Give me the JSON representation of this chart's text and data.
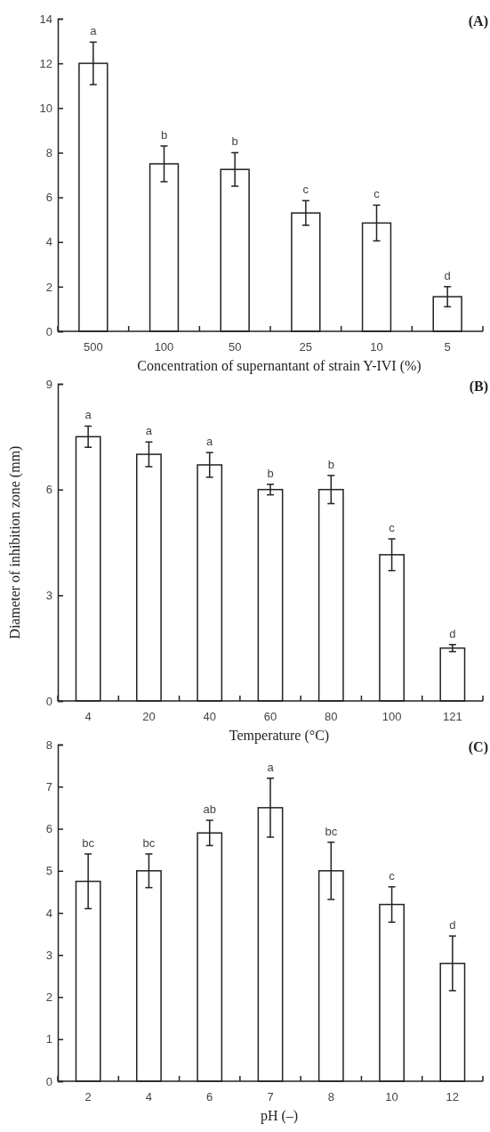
{
  "chart_data": [
    {
      "type": "bar",
      "title": "(A)",
      "xlabel": "Concentration of supernantant of strain Y-IVI (%)",
      "categories": [
        "500",
        "100",
        "50",
        "25",
        "10",
        "5"
      ],
      "values": [
        12,
        7.5,
        7.25,
        5.3,
        4.85,
        1.55
      ],
      "errors": [
        0.95,
        0.8,
        0.75,
        0.55,
        0.8,
        0.45
      ],
      "color": "#ffffff",
      "ylim": [
        0,
        14
      ],
      "yticks": [
        0,
        2,
        4,
        6,
        8,
        10,
        12,
        14
      ],
      "annotations": [
        {
          "text": "a",
          "x": "500",
          "y": 12.95
        },
        {
          "text": "b",
          "x": "100",
          "y": 8.3
        },
        {
          "text": "b",
          "x": "50",
          "y": 8
        },
        {
          "text": "c",
          "x": "25",
          "y": 5.85
        },
        {
          "text": "c",
          "x": "10",
          "y": 5.65
        },
        {
          "text": "d",
          "x": "5",
          "y": 2
        }
      ]
    },
    {
      "type": "bar",
      "title": "(B)",
      "xlabel": "Temperature (°C)",
      "ylabel": "Diameter of inhibition zone (mm)",
      "categories": [
        "4",
        "20",
        "40",
        "60",
        "80",
        "100",
        "121"
      ],
      "values": [
        7.5,
        7.0,
        6.7,
        6.0,
        6.0,
        4.15,
        1.5
      ],
      "errors": [
        0.3,
        0.35,
        0.35,
        0.15,
        0.4,
        0.45,
        0.1
      ],
      "color": "#ffffff",
      "ylim": [
        0,
        9
      ],
      "yticks": [
        0,
        3,
        6,
        9
      ],
      "annotations": [
        {
          "text": "a",
          "x": "4",
          "y": 7.8
        },
        {
          "text": "a",
          "x": "20",
          "y": 7.35
        },
        {
          "text": "a",
          "x": "40",
          "y": 7.05
        },
        {
          "text": "b",
          "x": "60",
          "y": 6.15
        },
        {
          "text": "b",
          "x": "80",
          "y": 6.4
        },
        {
          "text": "c",
          "x": "100",
          "y": 4.6
        },
        {
          "text": "d",
          "x": "121",
          "y": 1.6
        }
      ]
    },
    {
      "type": "bar",
      "title": "(C)",
      "xlabel": "pH (–)",
      "categories": [
        "2",
        "4",
        "6",
        "7",
        "8",
        "10",
        "12"
      ],
      "values": [
        4.75,
        5.0,
        5.9,
        6.5,
        5.0,
        4.2,
        2.8
      ],
      "errors": [
        0.65,
        0.4,
        0.3,
        0.7,
        0.68,
        0.42,
        0.65
      ],
      "color": "#ffffff",
      "ylim": [
        0,
        8
      ],
      "yticks": [
        0,
        1,
        2,
        3,
        4,
        5,
        6,
        7,
        8
      ],
      "annotations": [
        {
          "text": "bc",
          "x": "2",
          "y": 5.4
        },
        {
          "text": "bc",
          "x": "4",
          "y": 5.4
        },
        {
          "text": "ab",
          "x": "6",
          "y": 6.2
        },
        {
          "text": "a",
          "x": "7",
          "y": 7.2
        },
        {
          "text": "bc",
          "x": "8",
          "y": 5.68
        },
        {
          "text": "c",
          "x": "10",
          "y": 4.62
        },
        {
          "text": "d",
          "x": "12",
          "y": 3.45
        }
      ]
    }
  ]
}
